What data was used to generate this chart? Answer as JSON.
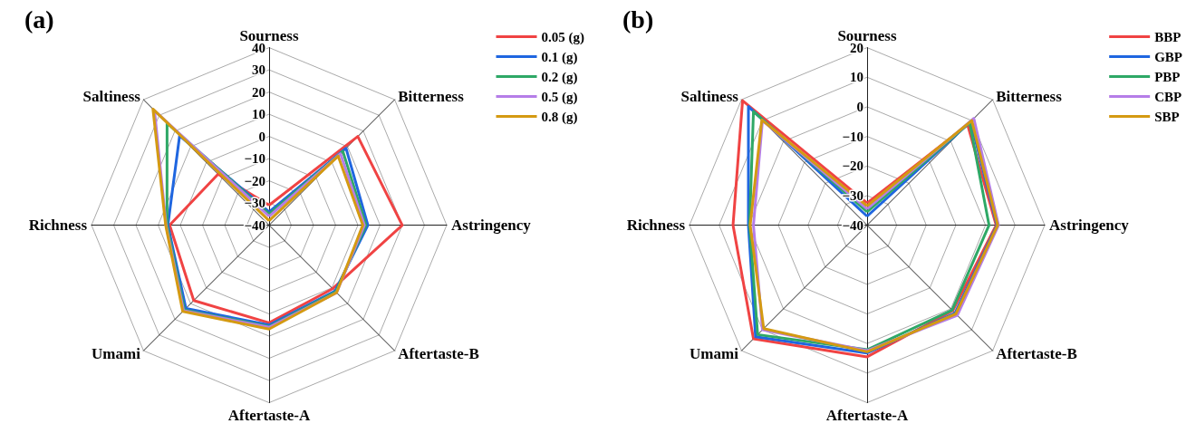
{
  "chart_data": [
    {
      "type": "radar",
      "title": "(a)",
      "categories": [
        "Sourness",
        "Bitterness",
        "Astringency",
        "Aftertaste-B",
        "Aftertaste-A",
        "Umami",
        "Richness",
        "Saltiness"
      ],
      "ylim": [
        -40,
        40
      ],
      "yticks": [
        -40,
        -30,
        -20,
        -10,
        0,
        10,
        20,
        30,
        40
      ],
      "grid": true,
      "legend": "top right",
      "marker": "none",
      "line_style": "solid",
      "series": [
        {
          "name": "0.05 (g)",
          "color": "#f04343",
          "values": [
            -31,
            16.5,
            20,
            0.5,
            4,
            8,
            4.8,
            -7.5
          ]
        },
        {
          "name": "0.1 (g)",
          "color": "#1f66e0",
          "values": [
            -34,
            9,
            4.5,
            2,
            5,
            13,
            5.6,
            17
          ]
        },
        {
          "name": "0.2 (g)",
          "color": "#2ea866",
          "values": [
            -35,
            7,
            3.6,
            2.5,
            5.7,
            14,
            6,
            25
          ]
        },
        {
          "name": "0.5 (g)",
          "color": "#b57de8",
          "values": [
            -36,
            5.5,
            2.9,
            3,
            6,
            14.5,
            6.4,
            33
          ]
        },
        {
          "name": "0.8 (g)",
          "color": "#d49a12",
          "values": [
            -38,
            4,
            2.2,
            3,
            6.8,
            15,
            6.6,
            34
          ]
        }
      ]
    },
    {
      "type": "radar",
      "title": "(b)",
      "categories": [
        "Sourness",
        "Bitterness",
        "Astringency",
        "Aftertaste-B",
        "Aftertaste-A",
        "Umami",
        "Richness",
        "Saltiness"
      ],
      "ylim": [
        -40,
        20
      ],
      "yticks": [
        -40,
        -30,
        -20,
        -10,
        0,
        10,
        20
      ],
      "grid": true,
      "legend": "top right",
      "marker": "none",
      "line_style": "solid",
      "series": [
        {
          "name": "BBP",
          "color": "#f04343",
          "values": [
            -32.5,
            8,
            3.6,
            0.9,
            4.5,
            14.3,
            5.3,
            19.5
          ]
        },
        {
          "name": "GBP",
          "color": "#1f66e0",
          "values": [
            -37,
            9.5,
            3.9,
            2,
            3.2,
            13.3,
            0.1,
            16.7
          ]
        },
        {
          "name": "PBP",
          "color": "#2ea866",
          "values": [
            -35.5,
            9,
            1.2,
            0.6,
            2.1,
            12.3,
            -0.3,
            14.3
          ]
        },
        {
          "name": "CBP",
          "color": "#b57de8",
          "values": [
            -34.5,
            11,
            4.4,
            3.1,
            2.4,
            10,
            -1.6,
            10
          ]
        },
        {
          "name": "SBP",
          "color": "#d49a12",
          "values": [
            -33.5,
            10,
            4.1,
            2.4,
            2.8,
            9.4,
            -0.5,
            10.3
          ]
        }
      ]
    }
  ]
}
